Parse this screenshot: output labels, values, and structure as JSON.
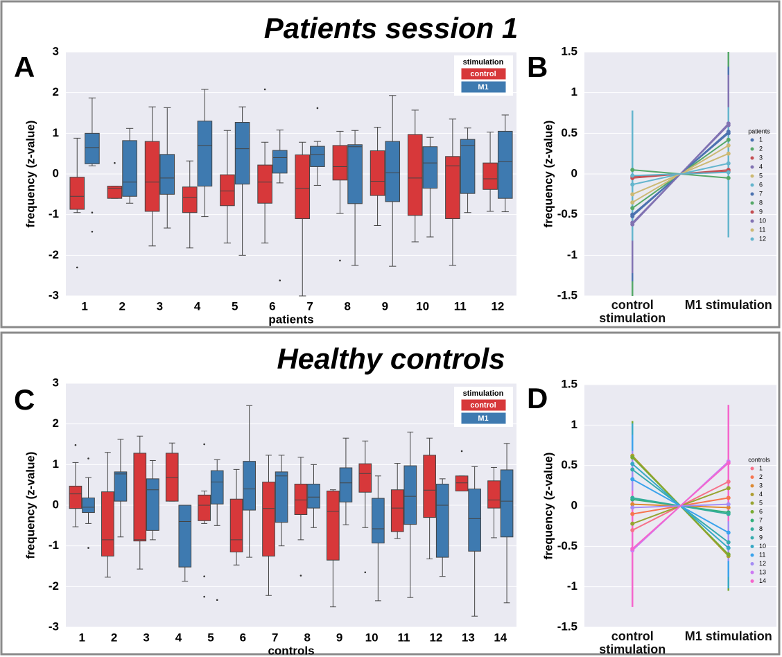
{
  "figure_titles": [
    "Patients session 1",
    "Healthy controls"
  ],
  "chart_data": [
    {
      "type": "box",
      "label": "A",
      "ylabel": "frequency (z-value)",
      "xlabel": "patients",
      "legend_title": "stimulation",
      "grid": true,
      "ylim": [
        -3,
        3
      ],
      "yticks": [
        -3,
        -2,
        -1,
        0,
        1,
        2,
        3
      ],
      "categories": [
        "1",
        "2",
        "3",
        "4",
        "5",
        "6",
        "7",
        "8",
        "9",
        "10",
        "11",
        "12"
      ],
      "series": [
        {
          "name": "control",
          "color": "#d7383a",
          "boxes": [
            {
              "whislo": -0.95,
              "q1": -0.87,
              "med": -0.55,
              "q3": -0.08,
              "whishi": 0.88,
              "fliers": [
                -2.3
              ]
            },
            {
              "whislo": -0.6,
              "q1": -0.6,
              "med": -0.35,
              "q3": -0.3,
              "whishi": -0.3,
              "fliers": [
                0.27
              ]
            },
            {
              "whislo": -1.77,
              "q1": -0.92,
              "med": -0.2,
              "q3": 0.8,
              "whishi": 1.65
            },
            {
              "whislo": -1.82,
              "q1": -0.95,
              "med": -0.57,
              "q3": -0.32,
              "whishi": 0.32
            },
            {
              "whislo": -1.7,
              "q1": -0.78,
              "med": -0.42,
              "q3": -0.02,
              "whishi": 1.07
            },
            {
              "whislo": -1.7,
              "q1": -0.72,
              "med": -0.2,
              "q3": 0.22,
              "whishi": 0.78,
              "fliers": [
                2.08
              ]
            },
            {
              "whislo": -3.0,
              "q1": -1.1,
              "med": -0.35,
              "q3": 0.47,
              "whishi": 0.78
            },
            {
              "whislo": -0.97,
              "q1": -0.15,
              "med": 0.18,
              "q3": 0.7,
              "whishi": 1.05,
              "fliers": [
                -2.13
              ]
            },
            {
              "whislo": -1.27,
              "q1": -0.53,
              "med": -0.18,
              "q3": 0.57,
              "whishi": 1.15
            },
            {
              "whislo": -1.67,
              "q1": -1.02,
              "med": -0.1,
              "q3": 0.97,
              "whishi": 1.57
            },
            {
              "whislo": -2.25,
              "q1": -1.1,
              "med": 0.2,
              "q3": 0.43,
              "whishi": 1.35
            },
            {
              "whislo": -0.92,
              "q1": -0.38,
              "med": -0.12,
              "q3": 0.27,
              "whishi": 1.03
            }
          ]
        },
        {
          "name": "M1",
          "color": "#3e7ab0",
          "boxes": [
            {
              "whislo": 0.2,
              "q1": 0.25,
              "med": 0.65,
              "q3": 1.0,
              "whishi": 1.87,
              "fliers": [
                -0.95,
                -1.42
              ]
            },
            {
              "whislo": -0.72,
              "q1": -0.55,
              "med": -0.2,
              "q3": 0.82,
              "whishi": 1.12
            },
            {
              "whislo": -1.33,
              "q1": -0.5,
              "med": -0.1,
              "q3": 0.48,
              "whishi": 1.63
            },
            {
              "whislo": -1.05,
              "q1": -0.3,
              "med": 0.7,
              "q3": 1.3,
              "whishi": 2.08
            },
            {
              "whislo": -2.0,
              "q1": -0.25,
              "med": 0.62,
              "q3": 1.27,
              "whishi": 1.65
            },
            {
              "whislo": -0.22,
              "q1": 0.02,
              "med": 0.4,
              "q3": 0.58,
              "whishi": 1.08,
              "fliers": [
                -2.62
              ]
            },
            {
              "whislo": -0.28,
              "q1": 0.18,
              "med": 0.48,
              "q3": 0.68,
              "whishi": 0.8,
              "fliers": [
                1.62
              ]
            },
            {
              "whislo": -2.25,
              "q1": -0.73,
              "med": 0.67,
              "q3": 0.72,
              "whishi": 1.07
            },
            {
              "whislo": -2.27,
              "q1": -0.68,
              "med": 0.03,
              "q3": 0.8,
              "whishi": 1.93
            },
            {
              "whislo": -1.55,
              "q1": -0.35,
              "med": 0.27,
              "q3": 0.67,
              "whishi": 0.9
            },
            {
              "whislo": -0.95,
              "q1": -0.48,
              "med": 0.7,
              "q3": 0.85,
              "whishi": 1.13
            },
            {
              "whislo": -0.93,
              "q1": -0.6,
              "med": 0.3,
              "q3": 1.05,
              "whishi": 1.45
            }
          ]
        }
      ]
    },
    {
      "type": "line",
      "label": "B",
      "ylabel": "frequency (z-value)",
      "legend_title": "patients",
      "grid": true,
      "ylim": [
        -1.5,
        1.5
      ],
      "yticks": [
        -1.5,
        -1,
        -0.5,
        0,
        0.5,
        1,
        1.5
      ],
      "categories": [
        "control stimulation",
        "M1 stimulation"
      ],
      "series": [
        {
          "name": "1",
          "color": "#4c72b0",
          "values": [
            -0.5,
            0.5
          ],
          "errors": [
            0.55,
            0.55
          ]
        },
        {
          "name": "2",
          "color": "#55a868",
          "values": [
            -0.42,
            0.42
          ],
          "errors": [
            1.08,
            1.08
          ]
        },
        {
          "name": "3",
          "color": "#c44e52",
          "values": [
            -0.05,
            0.05
          ],
          "errors": [
            0.3,
            0.3
          ]
        },
        {
          "name": "4",
          "color": "#8172b2",
          "values": [
            -0.6,
            0.6
          ],
          "errors": [
            0.4,
            0.4
          ]
        },
        {
          "name": "5",
          "color": "#ccb974",
          "values": [
            -0.35,
            0.35
          ],
          "errors": [
            0.7,
            0.7
          ]
        },
        {
          "name": "6",
          "color": "#64b5cd",
          "values": [
            -0.13,
            0.13
          ],
          "errors": [
            0.45,
            0.45
          ]
        },
        {
          "name": "7",
          "color": "#4c72b0",
          "values": [
            -0.52,
            0.52
          ],
          "errors": [
            0.8,
            0.8
          ]
        },
        {
          "name": "8",
          "color": "#55a868",
          "values": [
            0.05,
            -0.05
          ],
          "errors": [
            0.6,
            0.6
          ]
        },
        {
          "name": "9",
          "color": "#c44e52",
          "values": [
            -0.03,
            0.03
          ],
          "errors": [
            0.75,
            0.75
          ]
        },
        {
          "name": "10",
          "color": "#8172b2",
          "values": [
            -0.62,
            0.62
          ],
          "errors": [
            0.6,
            0.6
          ]
        },
        {
          "name": "11",
          "color": "#ccb974",
          "values": [
            -0.25,
            0.25
          ],
          "errors": [
            0.55,
            0.55
          ]
        },
        {
          "name": "12",
          "color": "#64b5cd",
          "values": [
            -0.02,
            0.02
          ],
          "errors": [
            0.8,
            0.8
          ]
        }
      ]
    },
    {
      "type": "box",
      "label": "C",
      "ylabel": "frequency (z-value)",
      "xlabel": "controls",
      "legend_title": "stimulation",
      "grid": true,
      "ylim": [
        -3,
        3
      ],
      "yticks": [
        -3,
        -2,
        -1,
        0,
        1,
        2,
        3
      ],
      "categories": [
        "1",
        "2",
        "3",
        "4",
        "5",
        "6",
        "7",
        "8",
        "9",
        "10",
        "11",
        "12",
        "13",
        "14"
      ],
      "series": [
        {
          "name": "control",
          "color": "#d7383a",
          "boxes": [
            {
              "whislo": -0.53,
              "q1": -0.08,
              "med": 0.28,
              "q3": 0.47,
              "whishi": 1.05,
              "fliers": [
                1.48
              ]
            },
            {
              "whislo": -1.77,
              "q1": -1.25,
              "med": -0.85,
              "q3": 0.33,
              "whishi": 1.3
            },
            {
              "whislo": -1.57,
              "q1": -0.88,
              "med": -0.85,
              "q3": 1.28,
              "whishi": 1.7
            },
            {
              "whislo": 0.1,
              "q1": 0.1,
              "med": 0.68,
              "q3": 1.28,
              "whishi": 1.53
            },
            {
              "whislo": -0.45,
              "q1": -0.38,
              "med": 0.0,
              "q3": 0.25,
              "whishi": 0.35,
              "fliers": [
                1.5,
                -1.75,
                -2.25
              ]
            },
            {
              "whislo": -1.47,
              "q1": -1.15,
              "med": -0.85,
              "q3": 0.15,
              "whishi": 0.88
            },
            {
              "whislo": -2.22,
              "q1": -1.25,
              "med": -0.08,
              "q3": 0.57,
              "whishi": 1.23
            },
            {
              "whislo": -0.85,
              "q1": -0.23,
              "med": 0.13,
              "q3": 0.52,
              "whishi": 1.18,
              "fliers": [
                -1.73
              ]
            },
            {
              "whislo": -2.5,
              "q1": -1.35,
              "med": -0.15,
              "q3": 0.35,
              "whishi": 0.38
            },
            {
              "whislo": -0.55,
              "q1": 0.32,
              "med": 0.78,
              "q3": 1.02,
              "whishi": 1.58,
              "fliers": [
                -1.65
              ]
            },
            {
              "whislo": -0.82,
              "q1": -0.65,
              "med": -0.07,
              "q3": 0.38,
              "whishi": 1.03
            },
            {
              "whislo": -1.32,
              "q1": -0.3,
              "med": 0.37,
              "q3": 1.23,
              "whishi": 1.65
            },
            {
              "whislo": 0.35,
              "q1": 0.35,
              "med": 0.55,
              "q3": 0.72,
              "whishi": 0.72,
              "fliers": [
                1.33
              ]
            },
            {
              "whislo": -0.8,
              "q1": -0.07,
              "med": 0.13,
              "q3": 0.6,
              "whishi": 0.93
            }
          ]
        },
        {
          "name": "M1",
          "color": "#3e7ab0",
          "boxes": [
            {
              "whislo": -0.45,
              "q1": -0.18,
              "med": -0.05,
              "q3": 0.18,
              "whishi": 0.68,
              "fliers": [
                1.15,
                -1.05
              ]
            },
            {
              "whislo": -0.78,
              "q1": 0.1,
              "med": 0.77,
              "q3": 0.82,
              "whishi": 1.62
            },
            {
              "whislo": -0.85,
              "q1": -0.62,
              "med": 0.38,
              "q3": 0.65,
              "whishi": 1.1
            },
            {
              "whislo": -1.87,
              "q1": -1.52,
              "med": -0.4,
              "q3": 0.0,
              "whishi": 0.0
            },
            {
              "whislo": -0.5,
              "q1": 0.03,
              "med": 0.57,
              "q3": 0.85,
              "whishi": 1.12,
              "fliers": [
                -2.33
              ]
            },
            {
              "whislo": -1.28,
              "q1": -0.12,
              "med": 0.4,
              "q3": 1.08,
              "whishi": 2.45
            },
            {
              "whislo": -1.0,
              "q1": -0.42,
              "med": 0.72,
              "q3": 0.82,
              "whishi": 1.23
            },
            {
              "whislo": -0.55,
              "q1": -0.07,
              "med": 0.2,
              "q3": 0.52,
              "whishi": 1.0
            },
            {
              "whislo": -0.48,
              "q1": 0.08,
              "med": 0.55,
              "q3": 0.92,
              "whishi": 1.65
            },
            {
              "whislo": -2.35,
              "q1": -0.93,
              "med": -0.58,
              "q3": 0.17,
              "whishi": 0.72
            },
            {
              "whislo": -2.27,
              "q1": -0.47,
              "med": 0.22,
              "q3": 0.97,
              "whishi": 1.8
            },
            {
              "whislo": -1.75,
              "q1": -1.28,
              "med": 0.0,
              "q3": 0.52,
              "whishi": 0.65
            },
            {
              "whislo": -2.73,
              "q1": -1.13,
              "med": -0.33,
              "q3": 0.4,
              "whishi": 0.95
            },
            {
              "whislo": -2.4,
              "q1": -0.78,
              "med": 0.1,
              "q3": 0.87,
              "whishi": 1.52
            }
          ]
        }
      ]
    },
    {
      "type": "line",
      "label": "D",
      "ylabel": "frequency (z-value)",
      "legend_title": "controls",
      "grid": true,
      "ylim": [
        -1.5,
        1.5
      ],
      "yticks": [
        -1.5,
        -1,
        -0.5,
        0,
        0.5,
        1,
        1.5
      ],
      "categories": [
        "control stimulation",
        "M1 stimulation"
      ],
      "series": [
        {
          "name": "1",
          "color": "#f77189",
          "values": [
            -0.3,
            0.3
          ],
          "errors": [
            0.5,
            0.5
          ]
        },
        {
          "name": "2",
          "color": "#f7754f",
          "values": [
            -0.1,
            0.1
          ],
          "errors": [
            0.3,
            0.3
          ]
        },
        {
          "name": "3",
          "color": "#dc8932",
          "values": [
            0.02,
            -0.02
          ],
          "errors": [
            0.4,
            0.4
          ]
        },
        {
          "name": "4",
          "color": "#ae9d31",
          "values": [
            0.62,
            -0.62
          ],
          "errors": [
            0.4,
            0.4
          ]
        },
        {
          "name": "5",
          "color": "#97a431",
          "values": [
            -0.22,
            0.22
          ],
          "errors": [
            0.5,
            0.5
          ]
        },
        {
          "name": "6",
          "color": "#77ab31",
          "values": [
            0.6,
            -0.6
          ],
          "errors": [
            0.45,
            0.45
          ]
        },
        {
          "name": "7",
          "color": "#33b07a",
          "values": [
            0.08,
            -0.08
          ],
          "errors": [
            0.5,
            0.5
          ]
        },
        {
          "name": "8",
          "color": "#35ad9c",
          "values": [
            0.1,
            -0.1
          ],
          "errors": [
            0.35,
            0.35
          ]
        },
        {
          "name": "9",
          "color": "#36abae",
          "values": [
            0.45,
            -0.45
          ],
          "errors": [
            0.4,
            0.4
          ]
        },
        {
          "name": "10",
          "color": "#38a9c5",
          "values": [
            0.52,
            -0.52
          ],
          "errors": [
            0.5,
            0.5
          ]
        },
        {
          "name": "11",
          "color": "#3ba3ec",
          "values": [
            0.33,
            -0.33
          ],
          "errors": [
            0.55,
            0.55
          ]
        },
        {
          "name": "12",
          "color": "#a48cf4",
          "values": [
            -0.02,
            0.02
          ],
          "errors": [
            0.7,
            0.7
          ]
        },
        {
          "name": "13",
          "color": "#cc7af4",
          "values": [
            -0.55,
            0.55
          ],
          "errors": [
            0.45,
            0.45
          ]
        },
        {
          "name": "14",
          "color": "#f565cc",
          "values": [
            -0.53,
            0.53
          ],
          "errors": [
            0.72,
            0.72
          ]
        }
      ]
    }
  ]
}
